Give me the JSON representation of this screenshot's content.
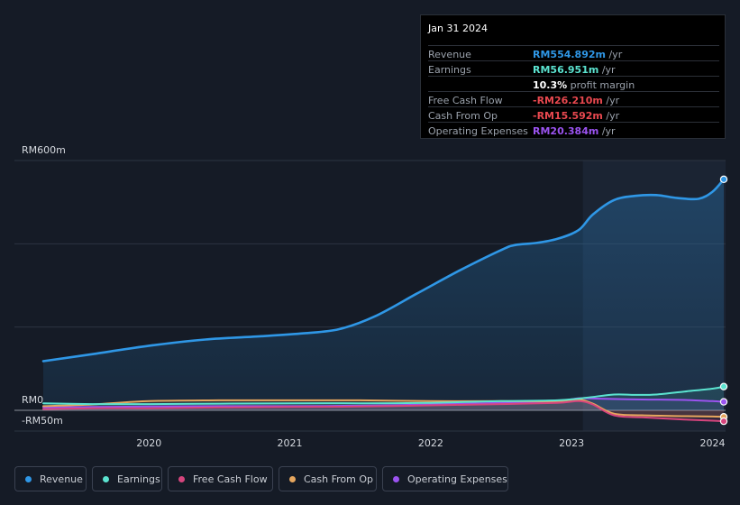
{
  "tooltip": {
    "date": "Jan 31 2024",
    "rows": [
      {
        "label": "Revenue",
        "value": "RM554.892m",
        "unit": " /yr",
        "color": "#2f97e6"
      },
      {
        "label": "Earnings",
        "value": "RM56.951m",
        "unit": " /yr",
        "color": "#5be3d0"
      },
      {
        "label": "",
        "value": "10.3%",
        "unit": " profit margin",
        "color": "#ffffff"
      },
      {
        "label": "Free Cash Flow",
        "value": "-RM26.210m",
        "unit": " /yr",
        "color": "#e8484f"
      },
      {
        "label": "Cash From Op",
        "value": "-RM15.592m",
        "unit": " /yr",
        "color": "#e8484f"
      },
      {
        "label": "Operating Expenses",
        "value": "RM20.384m",
        "unit": " /yr",
        "color": "#9b53f0"
      }
    ]
  },
  "legend": [
    {
      "label": "Revenue",
      "color": "#2f97e6"
    },
    {
      "label": "Earnings",
      "color": "#5be3d0"
    },
    {
      "label": "Free Cash Flow",
      "color": "#d6457d"
    },
    {
      "label": "Cash From Op",
      "color": "#e6a65e"
    },
    {
      "label": "Operating Expenses",
      "color": "#9b53f0"
    }
  ],
  "chart_data": {
    "type": "line",
    "title": "",
    "y_tick_labels": [
      "RM600m",
      "RM0",
      "-RM50m"
    ],
    "ylim": [
      -50,
      600
    ],
    "x_tick_labels": [
      "2020",
      "2021",
      "2022",
      "2023",
      "2024"
    ],
    "xlim": [
      2019.25,
      2024.08
    ],
    "highlight_from": 2023.08,
    "series": [
      {
        "name": "Revenue",
        "color": "#2f97e6",
        "fill": true,
        "x": [
          2019.25,
          2019.6,
          2020.0,
          2020.4,
          2020.8,
          2021.1,
          2021.35,
          2021.6,
          2021.9,
          2022.2,
          2022.5,
          2022.6,
          2022.75,
          2022.9,
          2023.05,
          2023.15,
          2023.3,
          2023.45,
          2023.6,
          2023.75,
          2023.9,
          2024.0,
          2024.08
        ],
        "values": [
          118,
          135,
          155,
          170,
          178,
          185,
          195,
          225,
          280,
          335,
          385,
          397,
          402,
          412,
          433,
          470,
          505,
          515,
          517,
          510,
          508,
          525,
          554.9
        ]
      },
      {
        "name": "Earnings",
        "color": "#5be3d0",
        "fill": false,
        "x": [
          2019.25,
          2019.6,
          2020.0,
          2020.5,
          2021.0,
          2021.5,
          2022.0,
          2022.5,
          2022.9,
          2023.1,
          2023.3,
          2023.45,
          2023.6,
          2023.8,
          2024.0,
          2024.08
        ],
        "values": [
          17,
          15,
          15,
          16,
          17,
          17,
          18,
          22,
          24,
          30,
          38,
          37,
          38,
          45,
          52,
          57
        ]
      },
      {
        "name": "Free Cash Flow",
        "color": "#d6457d",
        "fill": false,
        "x": [
          2019.25,
          2019.6,
          2020.0,
          2020.5,
          2021.0,
          2021.5,
          2022.0,
          2022.5,
          2022.9,
          2023.05,
          2023.15,
          2023.3,
          2023.5,
          2023.8,
          2024.0,
          2024.08
        ],
        "values": [
          3,
          5,
          5,
          7,
          8,
          9,
          12,
          15,
          18,
          22,
          14,
          -12,
          -17,
          -22,
          -25,
          -26.2
        ]
      },
      {
        "name": "Cash From Op",
        "color": "#e6a65e",
        "fill": false,
        "x": [
          2019.25,
          2019.6,
          2020.0,
          2020.5,
          2021.0,
          2021.5,
          2022.0,
          2022.5,
          2022.9,
          2023.05,
          2023.15,
          2023.3,
          2023.5,
          2023.8,
          2024.0,
          2024.08
        ],
        "values": [
          10,
          14,
          22,
          24,
          24,
          24,
          22,
          22,
          22,
          26,
          16,
          -8,
          -12,
          -14,
          -15,
          -15.6
        ]
      },
      {
        "name": "Operating Expenses",
        "color": "#9b53f0",
        "fill": false,
        "x": [
          2019.25,
          2019.6,
          2020.0,
          2020.5,
          2021.0,
          2021.5,
          2022.0,
          2022.5,
          2022.9,
          2023.05,
          2023.2,
          2023.5,
          2023.8,
          2024.0,
          2024.08
        ],
        "values": [
          7,
          8,
          9,
          10,
          10,
          11,
          14,
          18,
          22,
          29,
          28,
          26,
          25,
          22,
          20.4
        ]
      }
    ]
  }
}
